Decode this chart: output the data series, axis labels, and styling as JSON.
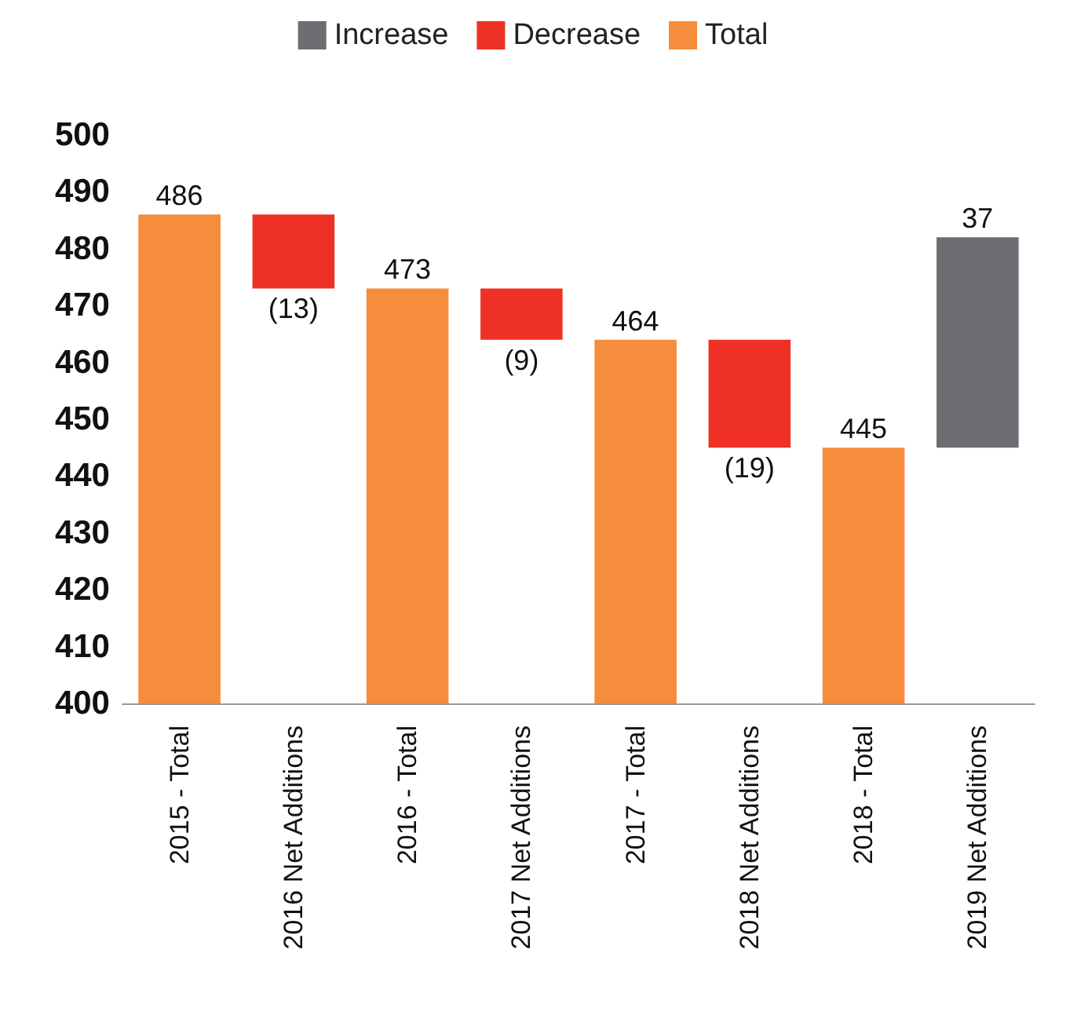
{
  "chart_data": {
    "type": "bar",
    "categories": [
      "2015 - Total",
      "2016 Net Additions",
      "2016 - Total",
      "2017 Net Additions",
      "2017 - Total",
      "2018 Net Additions",
      "2018 - Total",
      "2019 Net Additions"
    ],
    "series": [
      {
        "name": "Increase",
        "color": "#6d6e71",
        "values": [
          null,
          null,
          null,
          null,
          null,
          null,
          null,
          37
        ],
        "base": [
          null,
          null,
          null,
          null,
          null,
          null,
          null,
          445
        ],
        "value_labels": [
          null,
          null,
          null,
          null,
          null,
          null,
          null,
          "37"
        ]
      },
      {
        "name": "Decrease",
        "color": "#ee3124",
        "values": [
          null,
          -13,
          null,
          -9,
          null,
          -19,
          null,
          null
        ],
        "base": [
          null,
          486,
          null,
          473,
          null,
          464,
          null,
          null
        ],
        "value_labels": [
          null,
          "(13)",
          null,
          "(9)",
          null,
          "(19)",
          null,
          null
        ]
      },
      {
        "name": "Total",
        "color": "#f58d3c",
        "values": [
          486,
          null,
          473,
          null,
          464,
          null,
          445,
          null
        ],
        "value_labels": [
          "486",
          null,
          "473",
          null,
          "464",
          null,
          "445",
          null
        ]
      }
    ],
    "ylim": [
      400,
      500
    ],
    "yticks": [
      400,
      410,
      420,
      430,
      440,
      450,
      460,
      470,
      480,
      490,
      500
    ],
    "grid": false,
    "legend": "top"
  }
}
